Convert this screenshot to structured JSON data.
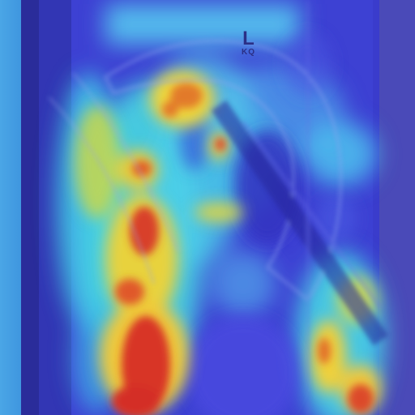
{
  "image": {
    "kind": "radiograph-heatmap-overlay",
    "description_colors": {
      "background_low": "#3b3fd6",
      "mid": "#39d6ee",
      "high": "#f2d23a",
      "peak": "#d9312a"
    },
    "side_marker": {
      "letter": "L",
      "initials": "KQ"
    }
  }
}
